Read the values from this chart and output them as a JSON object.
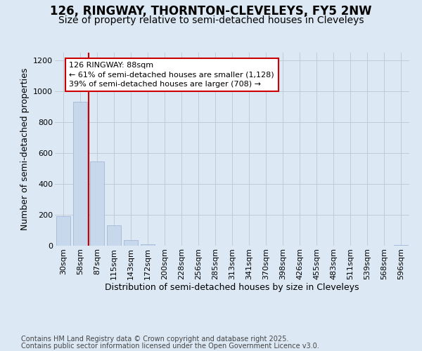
{
  "title_line1": "126, RINGWAY, THORNTON-CLEVELEYS, FY5 2NW",
  "title_line2": "Size of property relative to semi-detached houses in Cleveleys",
  "xlabel": "Distribution of semi-detached houses by size in Cleveleys",
  "ylabel": "Number of semi-detached properties",
  "categories": [
    "30sqm",
    "58sqm",
    "87sqm",
    "115sqm",
    "143sqm",
    "172sqm",
    "200sqm",
    "228sqm",
    "256sqm",
    "285sqm",
    "313sqm",
    "341sqm",
    "370sqm",
    "398sqm",
    "426sqm",
    "455sqm",
    "483sqm",
    "511sqm",
    "539sqm",
    "568sqm",
    "596sqm"
  ],
  "values": [
    190,
    930,
    545,
    130,
    35,
    10,
    2,
    0,
    0,
    0,
    0,
    0,
    0,
    0,
    0,
    0,
    0,
    0,
    0,
    0,
    5
  ],
  "bar_color": "#c8d8ec",
  "bar_edge_color": "#a0b8d8",
  "vline_x": 1.5,
  "vline_color": "#cc0000",
  "annotation_text": "126 RINGWAY: 88sqm\n← 61% of semi-detached houses are smaller (1,128)\n39% of semi-detached houses are larger (708) →",
  "annotation_box_edgecolor": "#cc0000",
  "annotation_fill": "#ffffff",
  "ylim": [
    0,
    1250
  ],
  "yticks": [
    0,
    200,
    400,
    600,
    800,
    1000,
    1200
  ],
  "grid_color": "#c0ccd8",
  "bg_color": "#dce8f4",
  "footnote_line1": "Contains HM Land Registry data © Crown copyright and database right 2025.",
  "footnote_line2": "Contains public sector information licensed under the Open Government Licence v3.0.",
  "title_fontsize": 12,
  "subtitle_fontsize": 10,
  "tick_fontsize": 8,
  "ylabel_fontsize": 9,
  "xlabel_fontsize": 9,
  "annotation_fontsize": 8,
  "footnote_fontsize": 7
}
